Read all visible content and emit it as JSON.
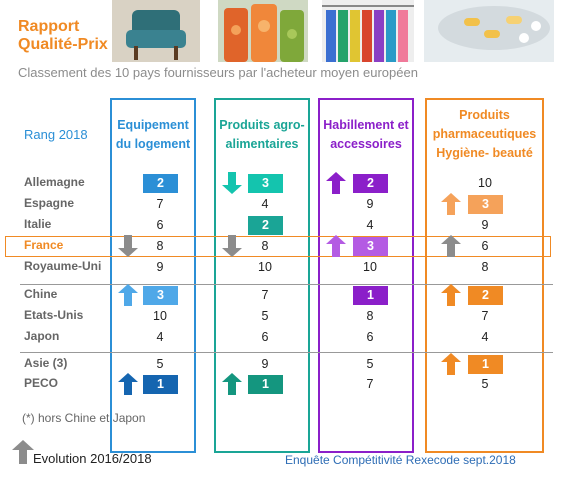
{
  "title_lines": [
    "Rapport",
    "Qualité-Prix"
  ],
  "subtitle": "Classement des 10 pays fournisseurs par l'acheteur moyen européen",
  "rang_label": "Rang 2018",
  "footnote": "(*) hors Chine et Japon",
  "legend": "Evolution 2016/2018",
  "source": "Enquête Compétitivité Rexecode sept.2018",
  "chart_data": {
    "type": "table",
    "columns": [
      {
        "label_lines": [
          "Equipement",
          "du logement"
        ],
        "color": "#2b8fd6"
      },
      {
        "label_lines": [
          "Produits agro-",
          "alimentaires"
        ],
        "color": "#1aa596"
      },
      {
        "label_lines": [
          "Habillement et",
          "accessoires"
        ],
        "color": "#8b1fc9"
      },
      {
        "label_lines": [
          "Produits",
          "pharmaceutiques",
          "Hygiène- beauté"
        ],
        "color": "#f08a24"
      }
    ],
    "rows": [
      {
        "country": "Allemagne",
        "values": [
          2,
          3,
          2,
          10
        ]
      },
      {
        "country": "Espagne",
        "values": [
          7,
          4,
          9,
          3
        ]
      },
      {
        "country": "Italie",
        "values": [
          6,
          2,
          4,
          9
        ]
      },
      {
        "country": "France",
        "values": [
          8,
          8,
          3,
          6
        ]
      },
      {
        "country": "Royaume-Uni",
        "values": [
          9,
          10,
          10,
          8
        ]
      },
      {
        "country": "Chine",
        "values": [
          3,
          7,
          1,
          2
        ]
      },
      {
        "country": "Etats-Unis",
        "values": [
          10,
          5,
          8,
          7
        ]
      },
      {
        "country": "Japon",
        "values": [
          4,
          6,
          6,
          4
        ]
      },
      {
        "country": "Asie (3)",
        "values": [
          5,
          9,
          5,
          1
        ]
      },
      {
        "country": "PECO",
        "values": [
          1,
          1,
          7,
          5
        ]
      }
    ],
    "highlights": [
      {
        "row": "Allemagne",
        "col": 0,
        "style": "chip",
        "color": "#2b8fd6",
        "arrow": "none"
      },
      {
        "row": "Allemagne",
        "col": 1,
        "style": "chip",
        "color": "#14c4ae",
        "arrow": "down"
      },
      {
        "row": "Allemagne",
        "col": 2,
        "style": "chip",
        "color": "#8b1fc9",
        "arrow": "up"
      },
      {
        "row": "Espagne",
        "col": 3,
        "style": "chip",
        "color": "#f5a25a",
        "arrow": "up"
      },
      {
        "row": "Italie",
        "col": 1,
        "style": "chip",
        "color": "#1aa596",
        "arrow": "none"
      },
      {
        "row": "France",
        "col": 0,
        "style": "plain",
        "color": "#8c8c8c",
        "arrow": "down"
      },
      {
        "row": "France",
        "col": 1,
        "style": "plain",
        "color": "#8c8c8c",
        "arrow": "down"
      },
      {
        "row": "France",
        "col": 2,
        "style": "chip",
        "color": "#b45be3",
        "arrow": "up"
      },
      {
        "row": "France",
        "col": 3,
        "style": "plain",
        "color": "#8c8c8c",
        "arrow": "up"
      },
      {
        "row": "Chine",
        "col": 0,
        "style": "chip",
        "color": "#4fa8e8",
        "arrow": "up"
      },
      {
        "row": "Chine",
        "col": 2,
        "style": "chip",
        "color": "#8b1fc9",
        "arrow": "none"
      },
      {
        "row": "Chine",
        "col": 3,
        "style": "chip",
        "color": "#f08a24",
        "arrow": "up"
      },
      {
        "row": "Asie (3)",
        "col": 3,
        "style": "chip",
        "color": "#f08a24",
        "arrow": "up"
      },
      {
        "row": "PECO",
        "col": 0,
        "style": "chip",
        "color": "#1565b0",
        "arrow": "up"
      },
      {
        "row": "PECO",
        "col": 1,
        "style": "chip",
        "color": "#14967f",
        "arrow": "up"
      }
    ]
  }
}
